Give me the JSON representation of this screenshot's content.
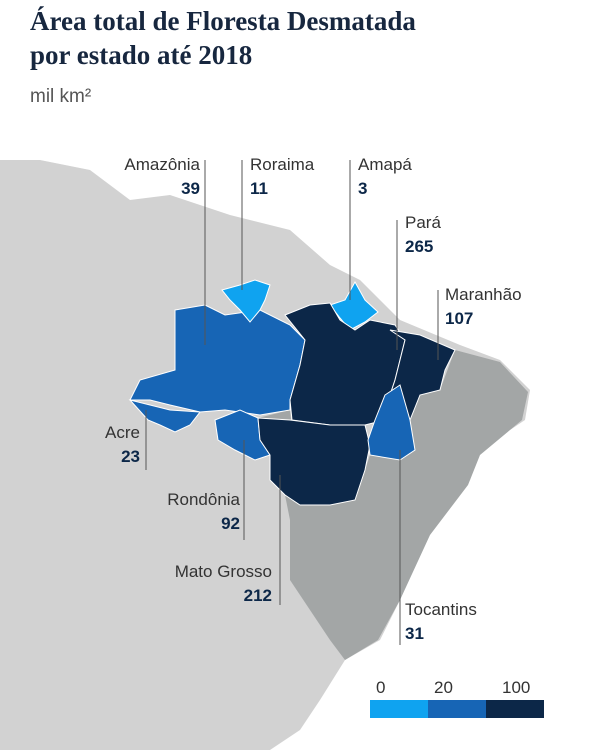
{
  "chart_data": {
    "type": "choropleth",
    "title": "Área total de Floresta Desmatada por estado até 2018",
    "subtitle": "mil km²",
    "regions": [
      {
        "name": "Amazônia",
        "value": 39
      },
      {
        "name": "Roraima",
        "value": 11
      },
      {
        "name": "Amapá",
        "value": 3
      },
      {
        "name": "Pará",
        "value": 265
      },
      {
        "name": "Maranhão",
        "value": 107
      },
      {
        "name": "Acre",
        "value": 23
      },
      {
        "name": "Rondônia",
        "value": 92
      },
      {
        "name": "Mato Grosso",
        "value": 212
      },
      {
        "name": "Tocantins",
        "value": 31
      }
    ],
    "legend": {
      "breaks": [
        0,
        20,
        100
      ],
      "colors": [
        "#0fa3f0",
        "#1765b5",
        "#0c2748"
      ]
    }
  }
}
